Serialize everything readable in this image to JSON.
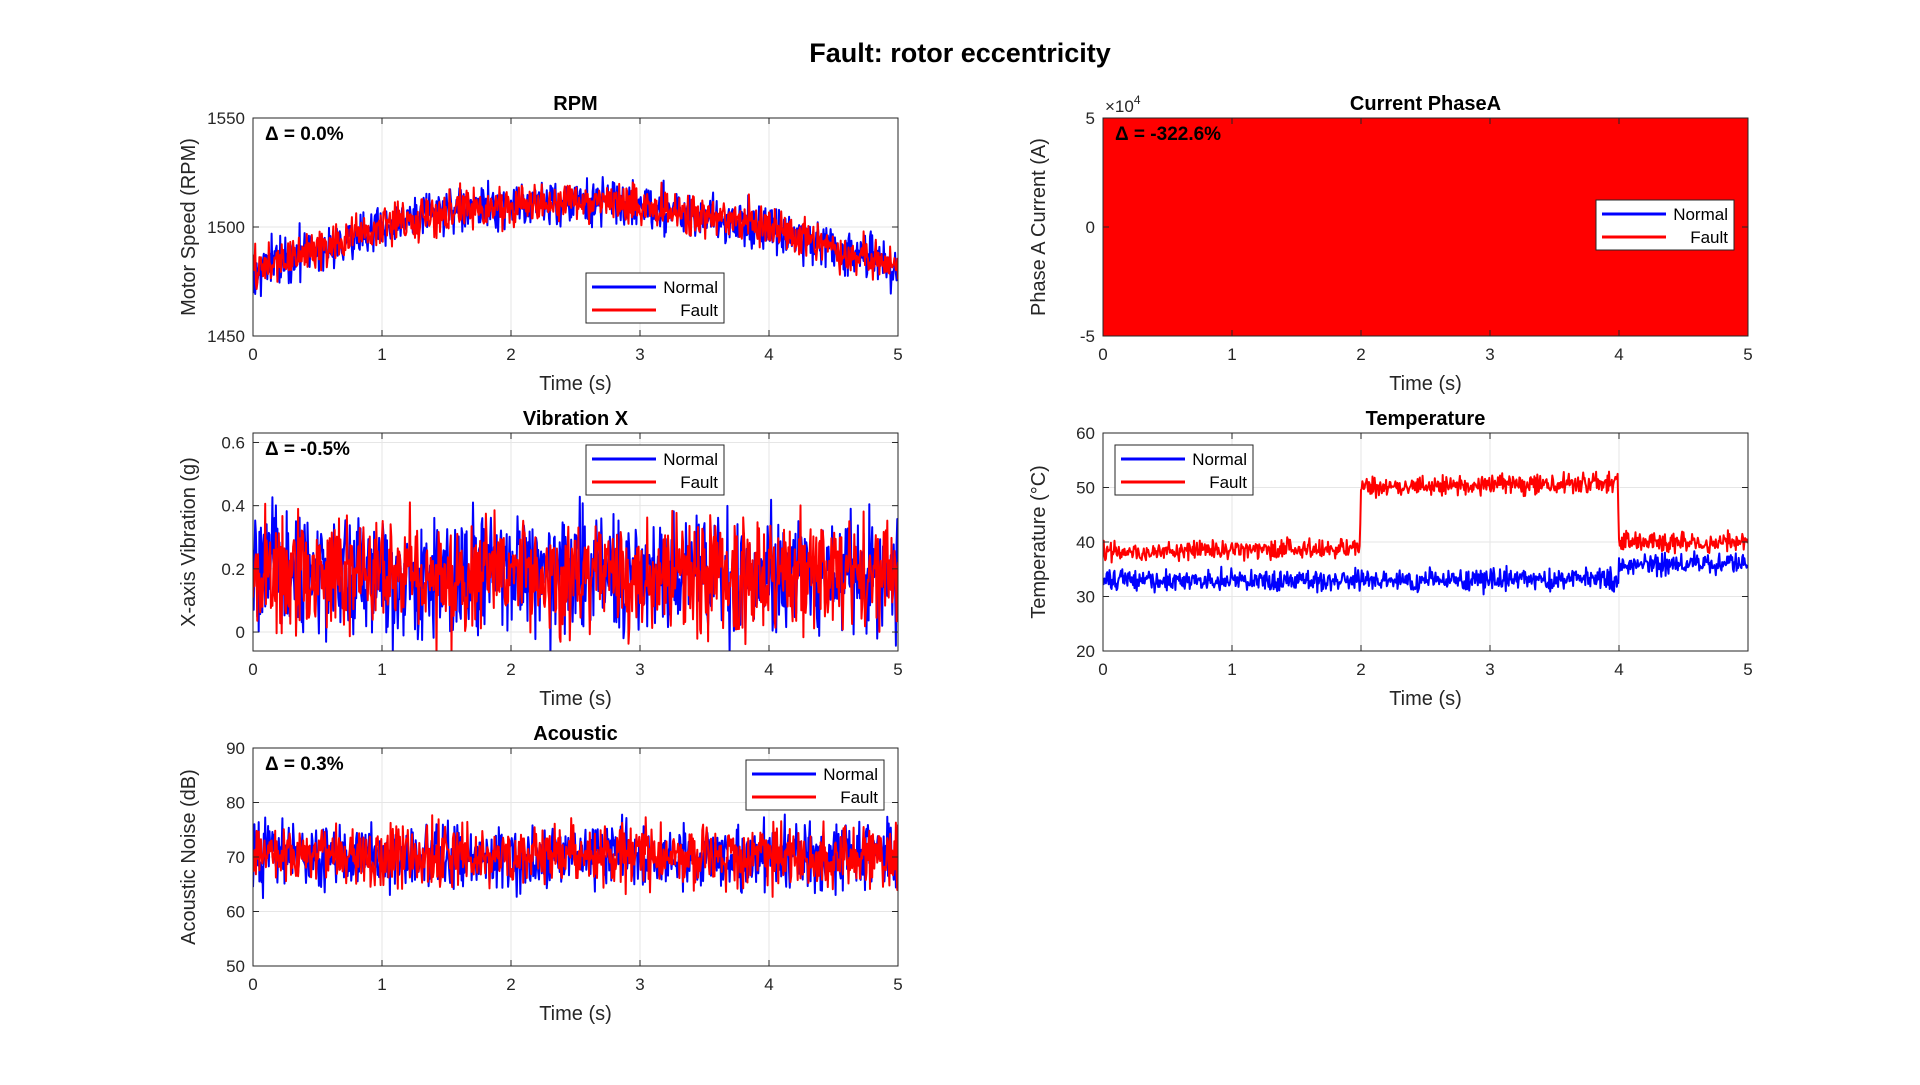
{
  "figure": {
    "title": "Fault: rotor eccentricity",
    "colors": {
      "normal": "#0000ff",
      "fault": "#ff0000",
      "grid": "#e6e6e6",
      "axis": "#262626"
    }
  },
  "chart_data": [
    {
      "id": "rpm",
      "type": "line",
      "title": "RPM",
      "xlabel": "Time (s)",
      "ylabel": "Motor Speed (RPM)",
      "xlim": [
        0,
        5
      ],
      "ylim": [
        1450,
        1550
      ],
      "xticks": [
        0,
        1,
        2,
        3,
        4,
        5
      ],
      "yticks": [
        1450,
        1500,
        1550
      ],
      "annotation": "Δ = 0.0%",
      "legend": {
        "entries": [
          "Normal",
          "Fault"
        ],
        "location": "bottom-right"
      },
      "grid": true,
      "series": [
        {
          "name": "Normal",
          "color": "#0000ff",
          "x": [
            0,
            0.5,
            1,
            1.5,
            2,
            2.5,
            3,
            3.5,
            4,
            4.5,
            5
          ],
          "y": [
            1480,
            1490,
            1500,
            1507,
            1510,
            1512,
            1510,
            1505,
            1500,
            1490,
            1482
          ],
          "noise": 12
        },
        {
          "name": "Fault",
          "color": "#ff0000",
          "x": [
            0,
            0.5,
            1,
            1.5,
            2,
            2.5,
            3,
            3.5,
            4,
            4.5,
            5
          ],
          "y": [
            1480,
            1490,
            1500,
            1507,
            1510,
            1512,
            1510,
            1505,
            1500,
            1490,
            1482
          ],
          "noise": 11
        }
      ]
    },
    {
      "id": "phasea",
      "type": "line",
      "title": "Current PhaseA",
      "xlabel": "Time (s)",
      "ylabel": "Phase A Current (A)",
      "xlim": [
        0,
        5
      ],
      "ylim": [
        -5,
        5
      ],
      "yscale_label": "×10^4",
      "xticks": [
        0,
        1,
        2,
        3,
        4,
        5
      ],
      "yticks": [
        -5,
        0,
        5
      ],
      "annotation": "Δ = -322.6%",
      "legend": {
        "entries": [
          "Normal",
          "Fault"
        ],
        "location": "right"
      },
      "grid": true,
      "series": [
        {
          "name": "Normal",
          "color": "#0000ff",
          "x": [
            0,
            5
          ],
          "y": [
            0,
            0
          ],
          "oscillation": 0.05
        },
        {
          "name": "Fault",
          "color": "#ff0000",
          "x": [
            0,
            5
          ],
          "y": [
            0,
            0
          ],
          "oscillation": 4.95
        }
      ]
    },
    {
      "id": "vibx",
      "type": "line",
      "title": "Vibration X",
      "xlabel": "Time (s)",
      "ylabel": "X-axis Vibration (g)",
      "xlim": [
        0,
        5
      ],
      "ylim": [
        -0.06,
        0.63
      ],
      "xticks": [
        0,
        1,
        2,
        3,
        4,
        5
      ],
      "yticks": [
        0,
        0.2,
        0.4,
        0.6
      ],
      "annotation": "Δ = -0.5%",
      "legend": {
        "entries": [
          "Normal",
          "Fault"
        ],
        "location": "top-right"
      },
      "grid": true,
      "series": [
        {
          "name": "Normal",
          "color": "#0000ff",
          "x": [
            0,
            5
          ],
          "y": [
            0.18,
            0.18
          ],
          "noise": 0.22
        },
        {
          "name": "Fault",
          "color": "#ff0000",
          "x": [
            0,
            5
          ],
          "y": [
            0.18,
            0.18
          ],
          "noise": 0.21
        }
      ]
    },
    {
      "id": "temp",
      "type": "line",
      "title": "Temperature",
      "xlabel": "Time (s)",
      "ylabel": "Temperature (°C)",
      "xlim": [
        0,
        5
      ],
      "ylim": [
        20,
        60
      ],
      "xticks": [
        0,
        1,
        2,
        3,
        4,
        5
      ],
      "yticks": [
        20,
        30,
        40,
        50,
        60
      ],
      "annotation": "",
      "legend": {
        "entries": [
          "Normal",
          "Fault"
        ],
        "location": "top-left"
      },
      "grid": true,
      "series": [
        {
          "name": "Normal",
          "color": "#0000ff",
          "x": [
            0,
            1.99,
            2,
            3.99,
            4,
            5
          ],
          "y": [
            33,
            33,
            33,
            33,
            36,
            36
          ],
          "noise": 2.2
        },
        {
          "name": "Fault",
          "color": "#ff0000",
          "x": [
            0,
            1.99,
            2,
            3.99,
            4,
            5
          ],
          "y": [
            38,
            39,
            50,
            51,
            40,
            40
          ],
          "noise": 2.0
        }
      ]
    },
    {
      "id": "acoustic",
      "type": "line",
      "title": "Acoustic",
      "xlabel": "Time (s)",
      "ylabel": "Acoustic Noise (dB)",
      "xlim": [
        0,
        5
      ],
      "ylim": [
        50,
        90
      ],
      "xticks": [
        0,
        1,
        2,
        3,
        4,
        5
      ],
      "yticks": [
        50,
        60,
        70,
        80,
        90
      ],
      "annotation": "Δ = 0.3%",
      "legend": {
        "entries": [
          "Normal",
          "Fault"
        ],
        "location": "top-right"
      },
      "grid": true,
      "series": [
        {
          "name": "Normal",
          "color": "#0000ff",
          "x": [
            0,
            5
          ],
          "y": [
            70,
            70
          ],
          "noise": 6.5
        },
        {
          "name": "Fault",
          "color": "#ff0000",
          "x": [
            0,
            5
          ],
          "y": [
            70.2,
            70.2
          ],
          "noise": 6.2
        }
      ]
    }
  ]
}
